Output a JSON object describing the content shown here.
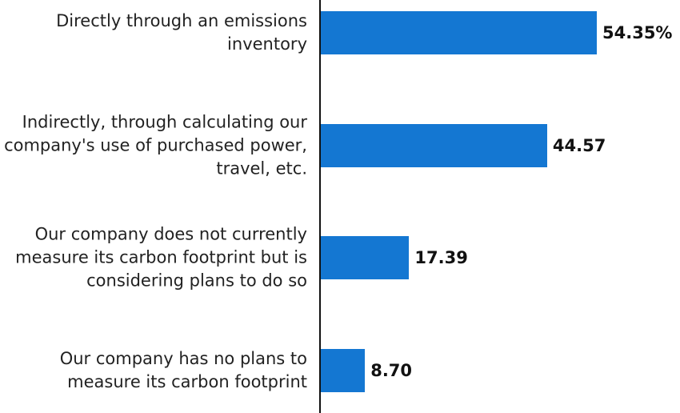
{
  "chart_data": {
    "type": "bar",
    "orientation": "horizontal",
    "categories": [
      "Directly through an emissions inventory",
      "Indirectly, through calculating our company's use of purchased power, travel, etc.",
      "Our company does not currently measure its carbon footprint but is considering plans to do so",
      "Our company has no plans to measure its carbon footprint"
    ],
    "values": [
      54.35,
      44.57,
      17.39,
      8.7
    ],
    "value_labels": [
      "54.35%",
      "44.57",
      "17.39",
      "8.70"
    ],
    "color": "#1477d2"
  }
}
